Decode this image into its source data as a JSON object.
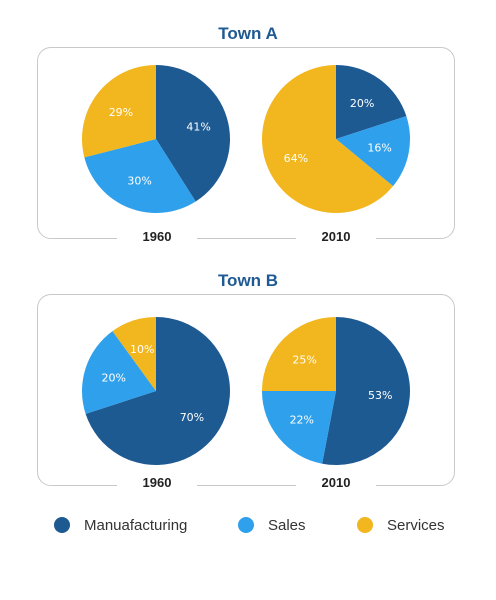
{
  "colors": {
    "manufacturing": "#1e5a92",
    "sales": "#2fa0ec",
    "services": "#f2b61e"
  },
  "legend": [
    {
      "label": "Manuafacturing",
      "color": "#1e5a92"
    },
    {
      "label": "Sales",
      "color": "#2fa0ec"
    },
    {
      "label": "Services",
      "color": "#f2b61e"
    }
  ],
  "chart_data": [
    {
      "type": "pie",
      "title": "Town A",
      "subtitle": "1960",
      "slices": [
        {
          "name": "Manuafacturing",
          "value": 41,
          "label": "41%"
        },
        {
          "name": "Sales",
          "value": 30,
          "label": "30%"
        },
        {
          "name": "Services",
          "value": 29,
          "label": "29%"
        }
      ]
    },
    {
      "type": "pie",
      "title": "Town A",
      "subtitle": "2010",
      "slices": [
        {
          "name": "Manuafacturing",
          "value": 20,
          "label": "20%"
        },
        {
          "name": "Sales",
          "value": 16,
          "label": "16%"
        },
        {
          "name": "Services",
          "value": 64,
          "label": "64%"
        }
      ]
    },
    {
      "type": "pie",
      "title": "Town B",
      "subtitle": "1960",
      "slices": [
        {
          "name": "Manuafacturing",
          "value": 70,
          "label": "70%"
        },
        {
          "name": "Sales",
          "value": 20,
          "label": "20%"
        },
        {
          "name": "Services",
          "value": 10,
          "label": "10%"
        }
      ]
    },
    {
      "type": "pie",
      "title": "Town B",
      "subtitle": "2010",
      "slices": [
        {
          "name": "Manuafacturing",
          "value": 53,
          "label": "53%"
        },
        {
          "name": "Sales",
          "value": 22,
          "label": "22%"
        },
        {
          "name": "Services",
          "value": 25,
          "label": "25%"
        }
      ]
    }
  ]
}
